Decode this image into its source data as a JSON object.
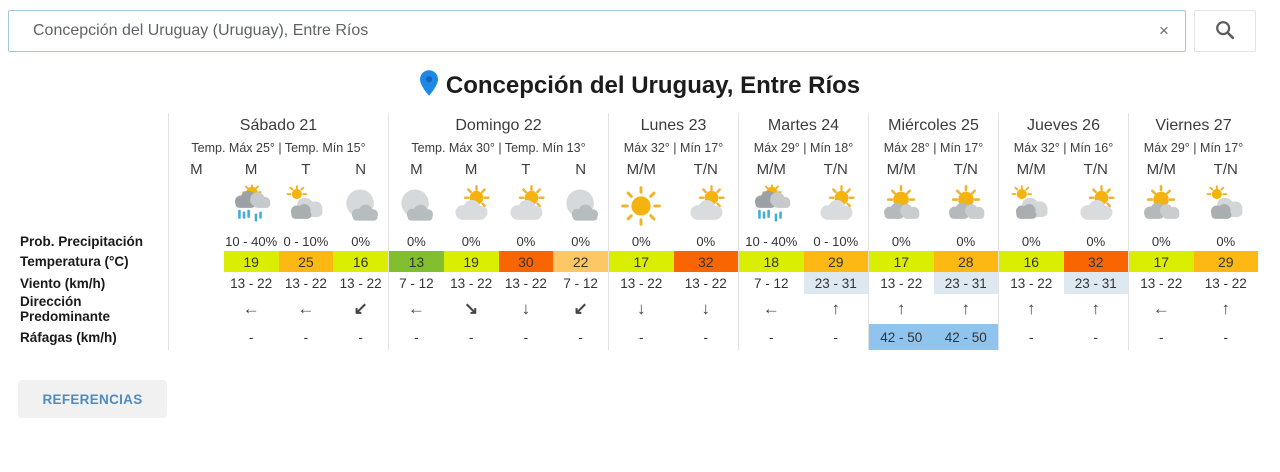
{
  "search": {
    "value": "Concepción del Uruguay (Uruguay), Entre Ríos",
    "clear_icon": "×"
  },
  "title": "Concepción del Uruguay, Entre Ríos",
  "row_labels": [
    "Prob. Precipitación",
    "Temperatura (°C)",
    "Viento (km/h)",
    "Dirección Predominante",
    "Ráfagas (km/h)"
  ],
  "references_label": "REFERENCIAS",
  "colors": {
    "temp_green": "#82bf30",
    "temp_yellow": "#d9ee00",
    "temp_amber": "#fdb813",
    "temp_pale_orange": "#fdc765",
    "temp_orange_red": "#f96500",
    "wind_highlight": "#dee8f1",
    "gust_highlight": "#8fc4ef",
    "pin_blue": "#1e88e5"
  },
  "days": [
    {
      "name": "Sábado 21",
      "temps": "Temp. Máx 25° | Temp. Mín 15°",
      "slots": [
        {
          "label": "M",
          "icon": "",
          "precip": "",
          "temp": "",
          "temp_color": "",
          "wind": "",
          "wind_bg": "",
          "dir": "",
          "gusts": "",
          "gusts_bg": ""
        },
        {
          "label": "M",
          "icon": "rain-sun",
          "precip": "10 - 40%",
          "temp": "19",
          "temp_color": "#d9ee00",
          "wind": "13 - 22",
          "wind_bg": "",
          "dir": "←",
          "gusts": "-",
          "gusts_bg": ""
        },
        {
          "label": "T",
          "icon": "mostly-cloudy-sun",
          "precip": "0 - 10%",
          "temp": "25",
          "temp_color": "#fdb813",
          "wind": "13 - 22",
          "wind_bg": "",
          "dir": "←",
          "gusts": "-",
          "gusts_bg": ""
        },
        {
          "label": "N",
          "icon": "cloud-moon",
          "precip": "0%",
          "temp": "16",
          "temp_color": "#d9ee00",
          "wind": "13 - 22",
          "wind_bg": "",
          "dir": "↙",
          "gusts": "-",
          "gusts_bg": ""
        }
      ]
    },
    {
      "name": "Domingo 22",
      "temps": "Temp. Máx 30° | Temp. Mín 13°",
      "slots": [
        {
          "label": "M",
          "icon": "cloud-moon",
          "precip": "0%",
          "temp": "13",
          "temp_color": "#82bf30",
          "wind": "7 - 12",
          "wind_bg": "",
          "dir": "←",
          "gusts": "-",
          "gusts_bg": ""
        },
        {
          "label": "M",
          "icon": "sun-cloud",
          "precip": "0%",
          "temp": "19",
          "temp_color": "#d9ee00",
          "wind": "13 - 22",
          "wind_bg": "",
          "dir": "↘",
          "gusts": "-",
          "gusts_bg": ""
        },
        {
          "label": "T",
          "icon": "sun-cloud",
          "precip": "0%",
          "temp": "30",
          "temp_color": "#f96500",
          "wind": "13 - 22",
          "wind_bg": "",
          "dir": "↓",
          "gusts": "-",
          "gusts_bg": ""
        },
        {
          "label": "N",
          "icon": "cloud-moon",
          "precip": "0%",
          "temp": "22",
          "temp_color": "#fdc765",
          "wind": "7 - 12",
          "wind_bg": "",
          "dir": "↙",
          "gusts": "-",
          "gusts_bg": ""
        }
      ]
    },
    {
      "name": "Lunes 23",
      "temps": "Máx 32° | Mín 17°",
      "slots": [
        {
          "label": "M/M",
          "icon": "sun",
          "precip": "0%",
          "temp": "17",
          "temp_color": "#d9ee00",
          "wind": "13 - 22",
          "wind_bg": "",
          "dir": "↓",
          "gusts": "-",
          "gusts_bg": ""
        },
        {
          "label": "T/N",
          "icon": "sun-cloud",
          "precip": "0%",
          "temp": "32",
          "temp_color": "#f96500",
          "wind": "13 - 22",
          "wind_bg": "",
          "dir": "↓",
          "gusts": "-",
          "gusts_bg": ""
        }
      ]
    },
    {
      "name": "Martes 24",
      "temps": "Máx 29° | Mín 18°",
      "slots": [
        {
          "label": "M/M",
          "icon": "rain-sun",
          "precip": "10 - 40%",
          "temp": "18",
          "temp_color": "#d9ee00",
          "wind": "7 - 12",
          "wind_bg": "",
          "dir": "←",
          "gusts": "-",
          "gusts_bg": ""
        },
        {
          "label": "T/N",
          "icon": "sun-cloud",
          "precip": "0 - 10%",
          "temp": "29",
          "temp_color": "#fdb813",
          "wind": "23 - 31",
          "wind_bg": "#dee8f1",
          "dir": "↑",
          "gusts": "-",
          "gusts_bg": ""
        }
      ]
    },
    {
      "name": "Miércoles 25",
      "temps": "Máx 28° | Mín 17°",
      "slots": [
        {
          "label": "M/M",
          "icon": "sun-clouds",
          "precip": "0%",
          "temp": "17",
          "temp_color": "#d9ee00",
          "wind": "13 - 22",
          "wind_bg": "",
          "dir": "↑",
          "gusts": "42 - 50",
          "gusts_bg": "#8fc4ef"
        },
        {
          "label": "T/N",
          "icon": "sun-clouds",
          "precip": "0%",
          "temp": "28",
          "temp_color": "#fdb813",
          "wind": "23 - 31",
          "wind_bg": "#dee8f1",
          "dir": "↑",
          "gusts": "42 - 50",
          "gusts_bg": "#8fc4ef"
        }
      ]
    },
    {
      "name": "Jueves 26",
      "temps": "Máx 32° | Mín 16°",
      "slots": [
        {
          "label": "M/M",
          "icon": "mostly-cloudy-sun",
          "precip": "0%",
          "temp": "16",
          "temp_color": "#d9ee00",
          "wind": "13 - 22",
          "wind_bg": "",
          "dir": "↑",
          "gusts": "-",
          "gusts_bg": ""
        },
        {
          "label": "T/N",
          "icon": "sun-cloud",
          "precip": "0%",
          "temp": "32",
          "temp_color": "#f96500",
          "wind": "23 - 31",
          "wind_bg": "#dee8f1",
          "dir": "↑",
          "gusts": "-",
          "gusts_bg": ""
        }
      ]
    },
    {
      "name": "Viernes 27",
      "temps": "Máx 29° | Mín 17°",
      "slots": [
        {
          "label": "M/M",
          "icon": "sun-clouds",
          "precip": "0%",
          "temp": "17",
          "temp_color": "#d9ee00",
          "wind": "13 - 22",
          "wind_bg": "",
          "dir": "←",
          "gusts": "-",
          "gusts_bg": ""
        },
        {
          "label": "T/N",
          "icon": "mostly-cloudy-sun",
          "precip": "0%",
          "temp": "29",
          "temp_color": "#fdb813",
          "wind": "13 - 22",
          "wind_bg": "",
          "dir": "↑",
          "gusts": "-",
          "gusts_bg": ""
        }
      ]
    }
  ]
}
